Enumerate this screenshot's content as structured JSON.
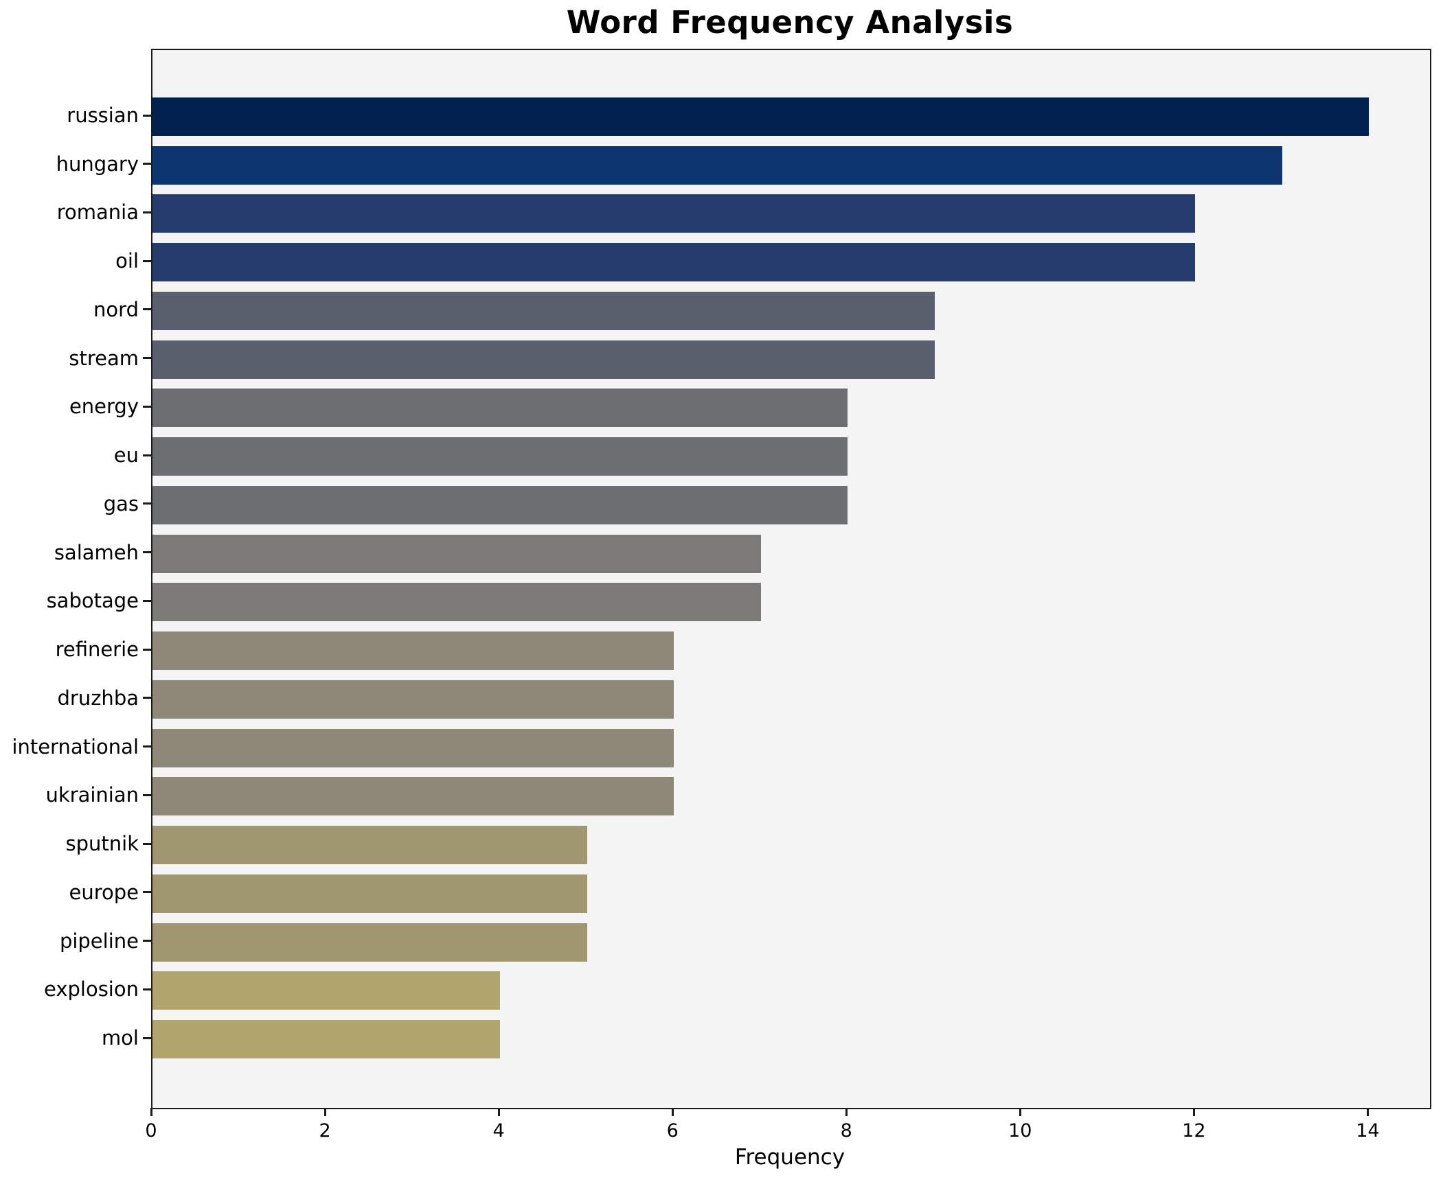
{
  "chart_data": {
    "type": "bar",
    "orientation": "horizontal",
    "title": "Word Frequency Analysis",
    "xlabel": "Frequency",
    "ylabel": "",
    "categories": [
      "russian",
      "hungary",
      "romania",
      "oil",
      "nord",
      "stream",
      "energy",
      "eu",
      "gas",
      "salameh",
      "sabotage",
      "refinerie",
      "druzhba",
      "international",
      "ukrainian",
      "sputnik",
      "europe",
      "pipeline",
      "explosion",
      "mol"
    ],
    "values": [
      14,
      13,
      12,
      12,
      9,
      9,
      8,
      8,
      8,
      7,
      7,
      6,
      6,
      6,
      6,
      5,
      5,
      5,
      4,
      4
    ],
    "bar_colors": [
      "#012150",
      "#0d3570",
      "#263c6c",
      "#263c6c",
      "#5a5f6d",
      "#5a5f6d",
      "#6c6e72",
      "#6c6e72",
      "#6c6e72",
      "#7b7a77",
      "#7b7a77",
      "#8d8878",
      "#8d8878",
      "#8d8878",
      "#8d8878",
      "#a09770",
      "#a09770",
      "#a09770",
      "#b1a76e",
      "#b1a76e"
    ],
    "xticks": [
      0,
      2,
      4,
      6,
      8,
      10,
      12,
      14
    ],
    "xlim": [
      0,
      14.7
    ],
    "grid": false,
    "legend_position": "none",
    "plot_background": "#f5f4f5",
    "figure_background": "#ffffff",
    "spine_color": "#1a1a1a",
    "text_color": "#000000"
  }
}
